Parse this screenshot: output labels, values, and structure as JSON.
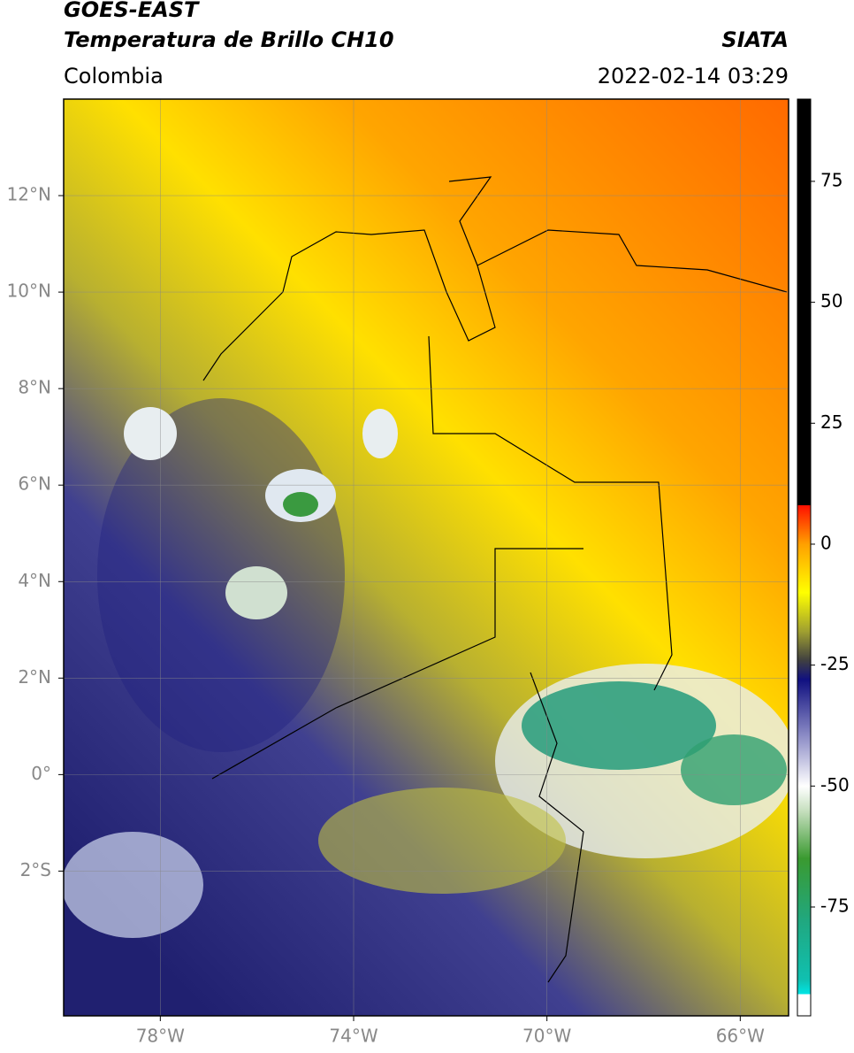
{
  "header": {
    "satellite": "GOES-EAST",
    "product": "Temperatura de Brillo CH10",
    "region": "Colombia",
    "source": "SIATA",
    "timestamp": "2022-02-14 03:29"
  },
  "map": {
    "lonlim": [
      -80,
      -65
    ],
    "latlim": [
      -5,
      14
    ],
    "xticks": [
      {
        "value": -78,
        "label": "78°W"
      },
      {
        "value": -74,
        "label": "74°W"
      },
      {
        "value": -70,
        "label": "70°W"
      },
      {
        "value": -66,
        "label": "66°W"
      }
    ],
    "yticks": [
      {
        "value": 12,
        "label": "12°N"
      },
      {
        "value": 10,
        "label": "10°N"
      },
      {
        "value": 8,
        "label": "8°N"
      },
      {
        "value": 6,
        "label": "6°N"
      },
      {
        "value": 4,
        "label": "4°N"
      },
      {
        "value": 2,
        "label": "2°N"
      },
      {
        "value": 0,
        "label": "0°"
      },
      {
        "value": -2,
        "label": "2°S"
      }
    ],
    "grid": true
  },
  "colorbar": {
    "lim": [
      -97.5,
      92
    ],
    "ticks": [
      75,
      50,
      25,
      0,
      -25,
      -50,
      -75
    ],
    "stops": [
      [
        -97.5,
        "#ffffff"
      ],
      [
        -93,
        "#ffffff"
      ],
      [
        -93,
        "#00e5e5"
      ],
      [
        -90,
        "#10c0b0"
      ],
      [
        -78,
        "#20a880"
      ],
      [
        -65,
        "#3a9a30"
      ],
      [
        -55,
        "#c8e0c0"
      ],
      [
        -50,
        "#ffffff"
      ],
      [
        -40,
        "#9090c8"
      ],
      [
        -28,
        "#101080"
      ],
      [
        -24,
        "#404040"
      ],
      [
        -18,
        "#a0a030"
      ],
      [
        -10,
        "#ffff00"
      ],
      [
        0,
        "#ffa000"
      ],
      [
        8,
        "#ff1000"
      ],
      [
        8,
        "#000000"
      ],
      [
        92,
        "#000000"
      ]
    ]
  }
}
